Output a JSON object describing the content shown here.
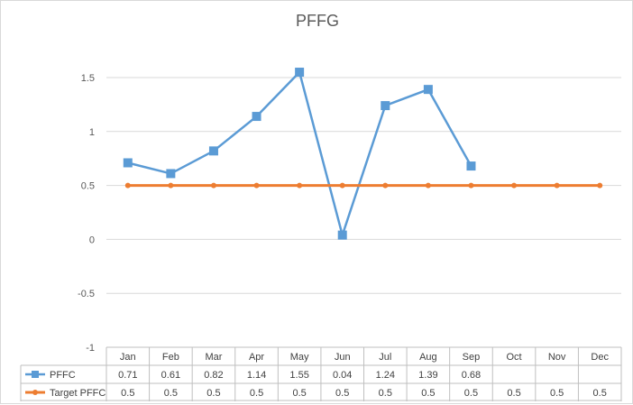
{
  "chart_data": {
    "type": "line",
    "title": "PFFG",
    "categories": [
      "Jan",
      "Feb",
      "Mar",
      "Apr",
      "May",
      "Jun",
      "Jul",
      "Aug",
      "Sep",
      "Oct",
      "Nov",
      "Dec"
    ],
    "ylim": [
      -1,
      1.5
    ],
    "yticks": [
      "1.5",
      "1",
      "0.5",
      "0",
      "-0.5",
      "-1"
    ],
    "grid": true,
    "data_table": true,
    "series": [
      {
        "name": "PFFC",
        "color": "#5b9bd5",
        "marker": "square",
        "values": [
          0.71,
          0.61,
          0.82,
          1.14,
          1.55,
          0.04,
          1.24,
          1.39,
          0.68,
          null,
          null,
          null
        ],
        "labels": [
          "0.71",
          "0.61",
          "0.82",
          "1.14",
          "1.55",
          "0.04",
          "1.24",
          "1.39",
          "0.68",
          "",
          "",
          ""
        ]
      },
      {
        "name": "Target PFFC",
        "color": "#ed7d31",
        "marker": "circle",
        "values": [
          0.5,
          0.5,
          0.5,
          0.5,
          0.5,
          0.5,
          0.5,
          0.5,
          0.5,
          0.5,
          0.5,
          0.5
        ],
        "labels": [
          "0.5",
          "0.5",
          "0.5",
          "0.5",
          "0.5",
          "0.5",
          "0.5",
          "0.5",
          "0.5",
          "0.5",
          "0.5",
          "0.5"
        ]
      }
    ]
  }
}
